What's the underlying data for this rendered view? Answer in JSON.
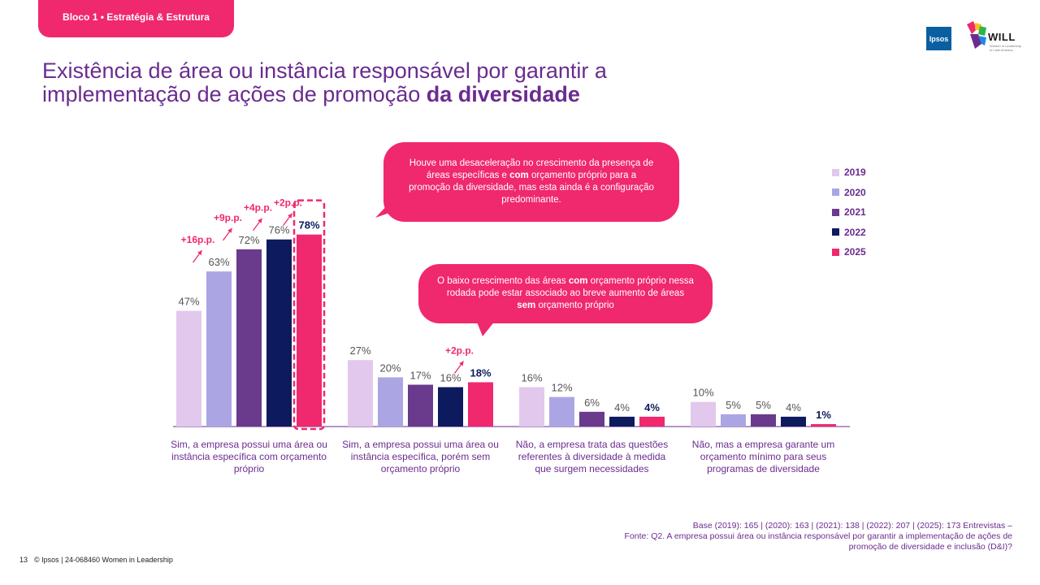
{
  "header": {
    "tag": "Bloco 1 • Estratégia & Estrutura",
    "title_part1": "Existência de área ou instância responsável por garantir a implementação de ações de promoção ",
    "title_bold": "da diversidade"
  },
  "logos": {
    "ipsos": "Ipsos",
    "will": "WILL",
    "will_sub": "Women in Leadership in Latin America"
  },
  "callouts": {
    "top": {
      "t1": "Houve uma desaceleração no crescimento da presença de áreas específicas e ",
      "b1": "com",
      "t2": " orçamento próprio para a promoção da diversidade, mas esta ainda é a configuração predominante."
    },
    "middle": {
      "t1": "O baixo crescimento das áreas ",
      "b1": "com",
      "t2": " orçamento próprio nessa rodada pode estar associado ao breve aumento de áreas ",
      "b2": "sem",
      "t3": " orçamento próprio"
    }
  },
  "colors": {
    "2019": "#e2c8ec",
    "2020": "#aba6e3",
    "2021": "#6a3a8c",
    "2022": "#0d1a5e",
    "2025": "#f0286e",
    "text": "#6a2c8f",
    "accent": "#f0286e"
  },
  "chart_data": {
    "type": "bar",
    "categories": [
      "Sim, a empresa possui uma área ou instância específica com orçamento próprio",
      "Sim, a empresa possui uma área ou instância específica, porém sem orçamento próprio",
      "Não, a empresa trata das questões referentes à diversidade à medida que surgem necessidades",
      "Não, mas a empresa garante um orçamento mínimo para seus programas de diversidade"
    ],
    "series": [
      {
        "name": "2019",
        "values": [
          47,
          27,
          16,
          10
        ]
      },
      {
        "name": "2020",
        "values": [
          63,
          20,
          12,
          5
        ]
      },
      {
        "name": "2021",
        "values": [
          72,
          17,
          6,
          5
        ]
      },
      {
        "name": "2022",
        "values": [
          76,
          16,
          4,
          4
        ]
      },
      {
        "name": "2025",
        "values": [
          78,
          18,
          4,
          1
        ]
      }
    ],
    "value_suffix": "%",
    "ylim": [
      0,
      100
    ],
    "annotations": [
      {
        "group": 0,
        "from_series": 0,
        "label": "+16p.p."
      },
      {
        "group": 0,
        "from_series": 1,
        "label": "+9p.p."
      },
      {
        "group": 0,
        "from_series": 2,
        "label": "+4p.p."
      },
      {
        "group": 0,
        "from_series": 3,
        "label": "+2p.p."
      },
      {
        "group": 1,
        "from_series": 3,
        "label": "+2p.p."
      }
    ],
    "legend_position": "right"
  },
  "footer": {
    "page": "13",
    "copyright": "© Ipsos | 24-068460 Women in Leadership",
    "base": "Base (2019): 165 | (2020): 163 | (2021): 138 | (2022): 207 | (2025): 173 Entrevistas –",
    "source": "Fonte: Q2. A empresa possui área ou instância responsável por garantir a implementação de ações de promoção de diversidade e inclusão (D&I)?"
  }
}
